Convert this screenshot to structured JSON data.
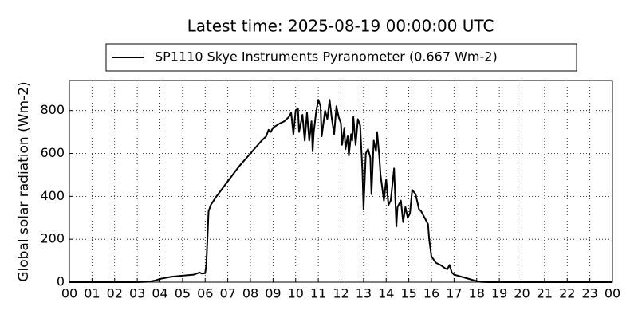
{
  "chart_data": {
    "type": "line",
    "title": "Latest time: 2025-08-19 00:00:00 UTC",
    "y_label": "Global solar radiation (Wm-2)",
    "grid": true,
    "legend": "top",
    "x": [
      0,
      3.0,
      3.5,
      3.8,
      4.0,
      4.5,
      5.0,
      5.5,
      5.75,
      5.85,
      6.0,
      6.05,
      6.1,
      6.15,
      6.25,
      6.5,
      7.0,
      7.5,
      8.0,
      8.5,
      8.7,
      8.8,
      8.9,
      9.0,
      9.3,
      9.5,
      9.7,
      9.8,
      9.9,
      10.0,
      10.1,
      10.15,
      10.3,
      10.4,
      10.5,
      10.6,
      10.7,
      10.75,
      10.8,
      10.9,
      11.0,
      11.1,
      11.15,
      11.3,
      11.4,
      11.5,
      11.6,
      11.7,
      11.8,
      11.9,
      12.0,
      12.05,
      12.15,
      12.2,
      12.3,
      12.35,
      12.45,
      12.5,
      12.55,
      12.65,
      12.75,
      12.85,
      12.95,
      13.0,
      13.1,
      13.2,
      13.3,
      13.35,
      13.45,
      13.55,
      13.6,
      13.7,
      13.75,
      13.85,
      13.9,
      14.0,
      14.1,
      14.2,
      14.35,
      14.45,
      14.5,
      14.65,
      14.75,
      14.85,
      14.95,
      15.05,
      15.15,
      15.3,
      15.45,
      15.55,
      15.7,
      15.85,
      15.9,
      16.0,
      16.2,
      16.4,
      16.6,
      16.7,
      16.8,
      16.9,
      17.0,
      17.5,
      18.0,
      18.2,
      18.5,
      24
    ],
    "series": [
      {
        "name": "SP1110 Skye Instruments Pyranometer (0.667 Wm-2)",
        "color": "#000000",
        "values": [
          0,
          0,
          2,
          8,
          15,
          25,
          30,
          35,
          45,
          40,
          42,
          80,
          200,
          330,
          360,
          400,
          470,
          540,
          600,
          660,
          680,
          710,
          700,
          720,
          740,
          750,
          770,
          790,
          690,
          800,
          810,
          700,
          780,
          660,
          790,
          660,
          750,
          610,
          700,
          790,
          850,
          820,
          680,
          800,
          760,
          850,
          760,
          690,
          820,
          770,
          740,
          640,
          720,
          620,
          680,
          590,
          690,
          660,
          770,
          640,
          760,
          730,
          520,
          340,
          600,
          620,
          580,
          410,
          660,
          610,
          700,
          580,
          500,
          420,
          380,
          480,
          360,
          380,
          530,
          260,
          350,
          380,
          280,
          350,
          300,
          320,
          430,
          410,
          340,
          330,
          300,
          270,
          200,
          120,
          90,
          80,
          65,
          60,
          80,
          45,
          35,
          20,
          5,
          1,
          0,
          0
        ]
      }
    ],
    "xlim": [
      0,
      24
    ],
    "ylim": [
      0,
      940
    ],
    "xticks": [
      {
        "value": 0,
        "label": "00"
      },
      {
        "value": 1,
        "label": "01"
      },
      {
        "value": 2,
        "label": "02"
      },
      {
        "value": 3,
        "label": "03"
      },
      {
        "value": 4,
        "label": "04"
      },
      {
        "value": 5,
        "label": "05"
      },
      {
        "value": 6,
        "label": "06"
      },
      {
        "value": 7,
        "label": "07"
      },
      {
        "value": 8,
        "label": "08"
      },
      {
        "value": 9,
        "label": "09"
      },
      10,
      11,
      12,
      13,
      14,
      15,
      16,
      17,
      18,
      19,
      20,
      21,
      22,
      23,
      {
        "value": 24,
        "label": "00"
      }
    ],
    "yticks": [
      0,
      200,
      400,
      600,
      800
    ]
  }
}
